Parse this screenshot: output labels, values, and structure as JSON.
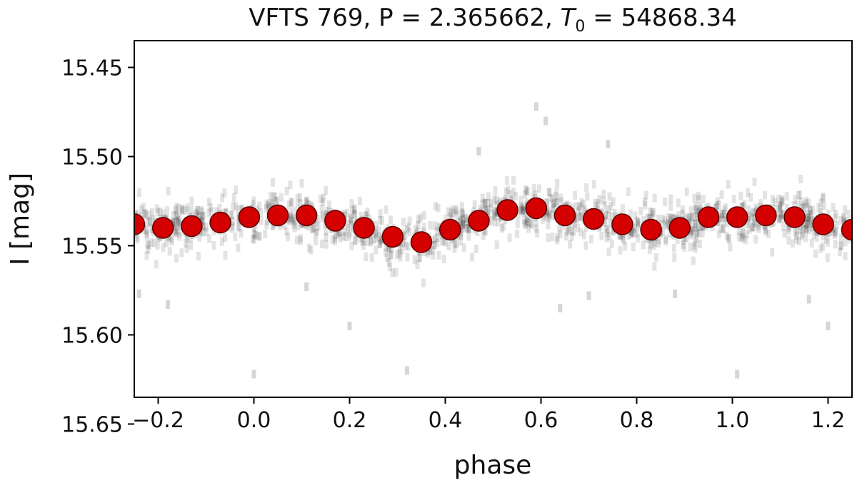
{
  "chart_data": {
    "type": "scatter",
    "title_prefix": "VFTS 769, P = 2.365662, ",
    "title_t_symbol": "T",
    "title_t_subscript": "0",
    "title_suffix": " = 54868.34",
    "xlabel": "phase",
    "ylabel": "I [mag]",
    "xlim": [
      -0.25,
      1.25
    ],
    "ylim": [
      15.635,
      15.435
    ],
    "y_inverted": true,
    "grid": false,
    "x_ticks": [
      {
        "value": -0.2,
        "label": "−0.2"
      },
      {
        "value": 0.0,
        "label": "0.0"
      },
      {
        "value": 0.2,
        "label": "0.2"
      },
      {
        "value": 0.4,
        "label": "0.4"
      },
      {
        "value": 0.6,
        "label": "0.6"
      },
      {
        "value": 0.8,
        "label": "0.8"
      },
      {
        "value": 1.0,
        "label": "1.0"
      },
      {
        "value": 1.2,
        "label": "1.2"
      }
    ],
    "y_ticks": [
      {
        "value": 15.45,
        "label": "15.45"
      },
      {
        "value": 15.5,
        "label": "15.50"
      },
      {
        "value": 15.55,
        "label": "15.55"
      },
      {
        "value": 15.6,
        "label": "15.60"
      },
      {
        "value": 15.65,
        "label": "15.65"
      }
    ],
    "binned_series": {
      "color": "#d40000",
      "x": [
        -0.25,
        -0.19,
        -0.13,
        -0.07,
        -0.01,
        0.05,
        0.11,
        0.17,
        0.23,
        0.29,
        0.35,
        0.41,
        0.47,
        0.53,
        0.59,
        0.65,
        0.71,
        0.77,
        0.83,
        0.89,
        0.95,
        1.01,
        1.07,
        1.13,
        1.19,
        1.25
      ],
      "y": [
        15.538,
        15.54,
        15.539,
        15.537,
        15.534,
        15.533,
        15.533,
        15.536,
        15.54,
        15.545,
        15.548,
        15.541,
        15.536,
        15.53,
        15.529,
        15.533,
        15.535,
        15.538,
        15.541,
        15.54,
        15.534,
        15.534,
        15.533,
        15.534,
        15.538,
        15.541
      ]
    },
    "raw_series": {
      "color": "#000000",
      "scatter_sigma": 0.007,
      "note_points": [
        [
          0.59,
          15.472
        ],
        [
          0.61,
          15.48
        ],
        [
          0.0,
          15.622
        ],
        [
          1.01,
          15.622
        ],
        [
          0.32,
          15.62
        ],
        [
          0.2,
          15.595
        ],
        [
          1.2,
          15.595
        ],
        [
          0.64,
          15.585
        ],
        [
          -0.18,
          15.583
        ],
        [
          0.7,
          15.578
        ],
        [
          0.74,
          15.493
        ],
        [
          0.47,
          15.497
        ],
        [
          0.88,
          15.577
        ],
        [
          1.16,
          15.58
        ],
        [
          -0.24,
          15.577
        ],
        [
          0.11,
          15.573
        ]
      ]
    }
  }
}
